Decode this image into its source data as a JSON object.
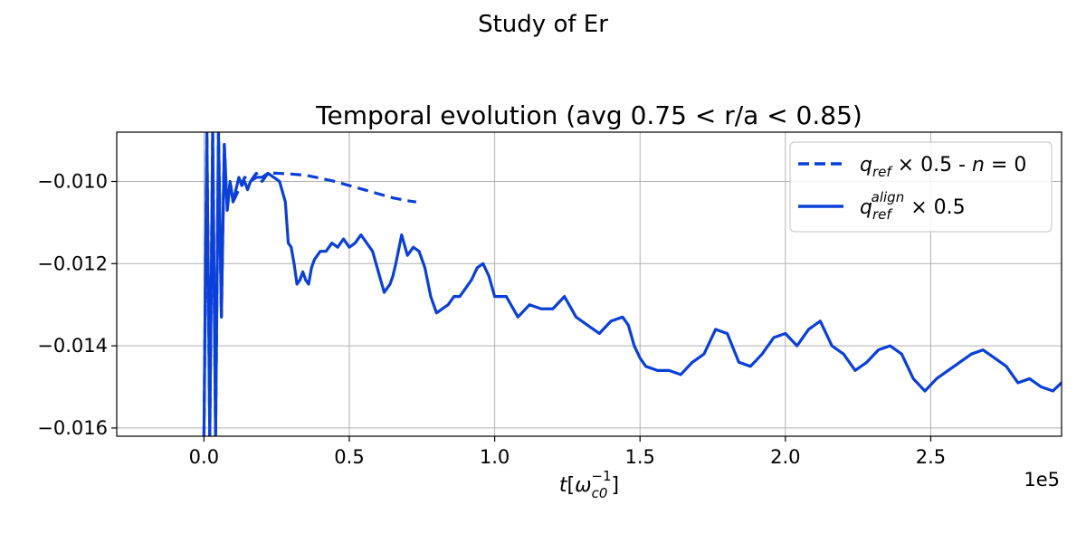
{
  "figure": {
    "suptitle": "Study of Er"
  },
  "chart_data": {
    "type": "line",
    "title": "Temporal evolution (avg 0.75 < r/a < 0.85)",
    "xlabel": "t[ω_c0^-1]",
    "ylabel": "",
    "x_offset_label": "1e5",
    "xlim": [
      -0.3,
      2.95
    ],
    "ylim": [
      -0.0162,
      -0.0088
    ],
    "grid": true,
    "legend_position": "top-right",
    "x_ticks": [
      0.0,
      0.5,
      1.0,
      1.5,
      2.0,
      2.5
    ],
    "x_tick_labels": [
      "0.0",
      "0.5",
      "1.0",
      "1.5",
      "2.0",
      "2.5"
    ],
    "y_ticks": [
      -0.01,
      -0.012,
      -0.014,
      -0.016
    ],
    "y_tick_labels": [
      "−0.010",
      "−0.012",
      "−0.014",
      "−0.016"
    ],
    "series": [
      {
        "name": "q_ref × 0.5 - n = 0",
        "style": "dashed",
        "color": "#0a3fd8",
        "x": [
          0.0,
          0.01,
          0.02,
          0.03,
          0.04,
          0.05,
          0.06,
          0.07,
          0.08,
          0.09,
          0.1,
          0.12,
          0.14,
          0.16,
          0.18,
          0.2,
          0.22,
          0.25,
          0.3,
          0.35,
          0.4,
          0.45,
          0.5,
          0.55,
          0.6,
          0.65,
          0.7,
          0.73
        ],
        "y": [
          -0.0162,
          -0.0088,
          -0.0162,
          -0.0088,
          -0.0162,
          -0.0088,
          -0.0133,
          -0.0091,
          -0.0107,
          -0.01,
          -0.0105,
          -0.0102,
          -0.0099,
          -0.01,
          -0.0098,
          -0.01,
          -0.0098,
          -0.0098,
          -0.00982,
          -0.00985,
          -0.00992,
          -0.01,
          -0.0101,
          -0.0102,
          -0.0103,
          -0.0104,
          -0.01047,
          -0.0105
        ]
      },
      {
        "name": "q_ref^align × 0.5",
        "style": "solid",
        "color": "#0a3fd8",
        "x": [
          0.0,
          0.01,
          0.02,
          0.03,
          0.04,
          0.05,
          0.06,
          0.07,
          0.08,
          0.09,
          0.1,
          0.11,
          0.12,
          0.13,
          0.14,
          0.15,
          0.16,
          0.18,
          0.2,
          0.22,
          0.24,
          0.26,
          0.28,
          0.29,
          0.3,
          0.31,
          0.32,
          0.33,
          0.34,
          0.35,
          0.36,
          0.37,
          0.38,
          0.4,
          0.42,
          0.44,
          0.46,
          0.48,
          0.5,
          0.52,
          0.54,
          0.56,
          0.58,
          0.6,
          0.62,
          0.64,
          0.65,
          0.66,
          0.68,
          0.7,
          0.72,
          0.74,
          0.76,
          0.78,
          0.8,
          0.82,
          0.84,
          0.86,
          0.88,
          0.9,
          0.92,
          0.94,
          0.96,
          0.98,
          1.0,
          1.04,
          1.08,
          1.12,
          1.16,
          1.2,
          1.24,
          1.28,
          1.32,
          1.36,
          1.4,
          1.44,
          1.46,
          1.48,
          1.5,
          1.52,
          1.56,
          1.6,
          1.64,
          1.68,
          1.72,
          1.76,
          1.8,
          1.84,
          1.88,
          1.92,
          1.96,
          2.0,
          2.04,
          2.08,
          2.12,
          2.16,
          2.2,
          2.24,
          2.28,
          2.32,
          2.36,
          2.4,
          2.44,
          2.48,
          2.52,
          2.56,
          2.6,
          2.64,
          2.68,
          2.72,
          2.76,
          2.8,
          2.84,
          2.88,
          2.92,
          2.95
        ],
        "y": [
          -0.0162,
          -0.0088,
          -0.0162,
          -0.0088,
          -0.0162,
          -0.0088,
          -0.0133,
          -0.0091,
          -0.0107,
          -0.01,
          -0.0105,
          -0.0102,
          -0.0099,
          -0.0101,
          -0.01,
          -0.0102,
          -0.01,
          -0.0099,
          -0.0099,
          -0.0098,
          -0.0099,
          -0.01,
          -0.0105,
          -0.0115,
          -0.0116,
          -0.012,
          -0.0125,
          -0.0124,
          -0.0122,
          -0.0124,
          -0.0125,
          -0.0121,
          -0.0119,
          -0.0117,
          -0.0117,
          -0.0115,
          -0.0116,
          -0.0114,
          -0.0116,
          -0.0115,
          -0.0113,
          -0.0115,
          -0.0117,
          -0.0122,
          -0.0127,
          -0.0125,
          -0.0123,
          -0.012,
          -0.0113,
          -0.0118,
          -0.0116,
          -0.0117,
          -0.0121,
          -0.0128,
          -0.0132,
          -0.0131,
          -0.013,
          -0.0128,
          -0.0128,
          -0.0126,
          -0.0124,
          -0.0121,
          -0.012,
          -0.0123,
          -0.0128,
          -0.0128,
          -0.0133,
          -0.013,
          -0.0131,
          -0.0131,
          -0.0128,
          -0.0133,
          -0.0135,
          -0.0137,
          -0.0134,
          -0.0133,
          -0.0135,
          -0.014,
          -0.0143,
          -0.0145,
          -0.0146,
          -0.0146,
          -0.0147,
          -0.0144,
          -0.0142,
          -0.0136,
          -0.0137,
          -0.0144,
          -0.0145,
          -0.0142,
          -0.0138,
          -0.0137,
          -0.014,
          -0.0136,
          -0.0134,
          -0.014,
          -0.0142,
          -0.0146,
          -0.0144,
          -0.0141,
          -0.014,
          -0.0142,
          -0.0148,
          -0.0151,
          -0.0148,
          -0.0146,
          -0.0144,
          -0.0142,
          -0.0141,
          -0.0143,
          -0.0145,
          -0.0149,
          -0.0148,
          -0.015,
          -0.0151,
          -0.0149
        ]
      }
    ]
  }
}
